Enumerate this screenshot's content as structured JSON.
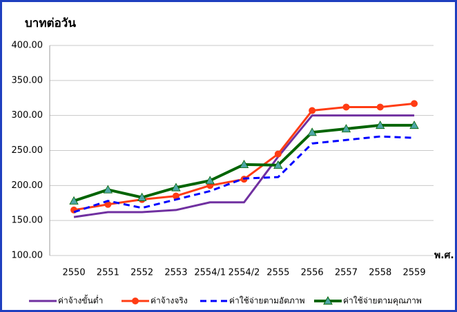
{
  "chart_data": {
    "type": "line",
    "y_label": "บาทต่อวัน",
    "x_label": "พ.ศ.",
    "categories": [
      "2550",
      "2551",
      "2552",
      "2553",
      "2554/1",
      "2554/2",
      "2555",
      "2556",
      "2557",
      "2558",
      "2559"
    ],
    "ylim": [
      100,
      400
    ],
    "yticks": [
      {
        "value": 100,
        "label": "100.00"
      },
      {
        "value": 150,
        "label": "150.00"
      },
      {
        "value": 200,
        "label": "200.00"
      },
      {
        "value": 250,
        "label": "250.00"
      },
      {
        "value": 300,
        "label": "300.00"
      },
      {
        "value": 350,
        "label": "350.00"
      },
      {
        "value": 400,
        "label": "400.00"
      }
    ],
    "grid": true,
    "series": [
      {
        "name": "ค่าจ้างขั้นต่ำ",
        "color": "#7030a0",
        "values": [
          155,
          162,
          162,
          165,
          176,
          176,
          241,
          300,
          300,
          300,
          300
        ]
      },
      {
        "name": "ค่าจ้างจริง",
        "color": "#ff3c14",
        "marker": "circle",
        "values": [
          165,
          173,
          180,
          185,
          200,
          209,
          245,
          307,
          312,
          312,
          317
        ]
      },
      {
        "name": "ค่าใช้จ่ายตามอัตภาพ",
        "color": "#0000ff",
        "dashed": true,
        "values": [
          162,
          178,
          168,
          180,
          192,
          210,
          212,
          260,
          265,
          270,
          268
        ]
      },
      {
        "name": "ค่าใช้จ่ายตามคุณภาพ",
        "color": "#006400",
        "marker": "triangle",
        "marker_color": "#4ea6a6",
        "values": [
          178,
          194,
          183,
          197,
          207,
          230,
          229,
          276,
          281,
          286,
          286
        ]
      }
    ]
  }
}
